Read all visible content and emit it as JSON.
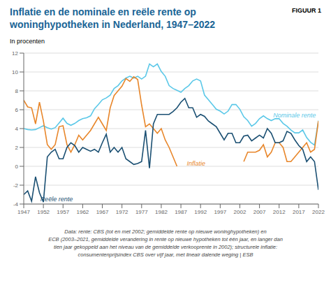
{
  "chart_data": {
    "type": "line",
    "title": "Inflatie en de nominale en reële rente op\nwoninghypotheken in Nederland, 1947–2022",
    "title_color": "#1a6596",
    "figure_label": "FIGUUR 1",
    "ylabel": "In procenten",
    "footnote": "Data: rente: CBS (tot en met 2002; gemiddelde rente op nieuwe woninghypotheken) en\nECB (2003–2021, gemiddelde verandering in rente op nieuwe hypotheken tot één jaar, en langer dan\ntien jaar gekoppeld aan het niveau van de gemiddelde verkooprente in 2002); structurele inflatie:\nconsumentenprijsindex CBS over vijf jaar, met lineair dalende weging | ESB",
    "grid": "y",
    "xlim": [
      1947,
      2022
    ],
    "xticks": [
      1947,
      1952,
      1957,
      1962,
      1967,
      1972,
      1977,
      1982,
      1987,
      1992,
      1997,
      2002,
      2007,
      2012,
      2017,
      2022
    ],
    "ylim": [
      -4,
      12
    ],
    "yticks": [
      -4,
      -2,
      0,
      2,
      4,
      6,
      8,
      10,
      12
    ],
    "x": [
      1947,
      1948,
      1949,
      1950,
      1951,
      1952,
      1953,
      1954,
      1955,
      1956,
      1957,
      1958,
      1959,
      1960,
      1961,
      1962,
      1963,
      1964,
      1965,
      1966,
      1967,
      1968,
      1969,
      1970,
      1971,
      1972,
      1973,
      1974,
      1975,
      1976,
      1977,
      1978,
      1979,
      1980,
      1981,
      1982,
      1983,
      1984,
      1985,
      1986,
      1987,
      1988,
      1989,
      1990,
      1991,
      1992,
      1993,
      1994,
      1995,
      1996,
      1997,
      1998,
      1999,
      2000,
      2001,
      2002,
      2003,
      2004,
      2005,
      2006,
      2007,
      2008,
      2009,
      2010,
      2011,
      2012,
      2013,
      2014,
      2015,
      2016,
      2017,
      2018,
      2019,
      2020,
      2021,
      2022
    ],
    "series": [
      {
        "name": "Nominale rente",
        "color": "#5bc8e8",
        "values": [
          4.0,
          3.9,
          3.85,
          3.9,
          4.1,
          4.3,
          4.1,
          3.95,
          4.1,
          4.6,
          5.1,
          4.55,
          4.35,
          4.55,
          4.85,
          5.05,
          5.15,
          5.35,
          6.1,
          6.55,
          7.05,
          7.25,
          7.55,
          8.25,
          8.55,
          9.05,
          9.35,
          9.55,
          9.35,
          9.55,
          9.25,
          9.55,
          10.85,
          10.55,
          10.85,
          10.05,
          9.55,
          8.55,
          8.25,
          8.05,
          7.85,
          8.25,
          8.55,
          9.05,
          9.25,
          9.05,
          7.55,
          7.05,
          6.55,
          6.05,
          5.85,
          5.55,
          5.85,
          6.55,
          6.55,
          6.05,
          5.25,
          4.85,
          4.25,
          4.55,
          5.05,
          5.35,
          5.05,
          4.85,
          5.05,
          5.05,
          4.55,
          4.25,
          3.85,
          3.55,
          3.55,
          3.85,
          3.05,
          2.55,
          2.25,
          4.85
        ]
      },
      {
        "name": "Inflatie",
        "color": "#e8862a",
        "values": [
          7.0,
          6.3,
          6.2,
          4.5,
          6.8,
          4.8,
          2.3,
          1.8,
          2.3,
          4.2,
          4.3,
          2.3,
          1.5,
          2.3,
          3.3,
          2.8,
          3.3,
          3.8,
          4.5,
          5.2,
          4.5,
          3.8,
          6.2,
          7.5,
          8.0,
          8.5,
          9.3,
          9.0,
          9.5,
          9.2,
          6.5,
          4.2,
          4.5,
          4.0,
          3.5,
          4.0,
          2.8,
          2.0,
          1.0,
          0.0,
          null,
          null,
          null,
          null,
          null,
          null,
          null,
          null,
          null,
          null,
          null,
          null,
          null,
          null,
          null,
          null,
          0.5,
          1.5,
          1.5,
          1.5,
          1.7,
          2.3,
          1.0,
          1.5,
          2.5,
          2.5,
          2.0,
          0.5,
          0.5,
          1.0,
          1.5,
          2.0,
          2.5,
          1.5,
          1.8,
          4.8
        ]
      },
      {
        "name": "Reële rente",
        "color": "#1a4f72",
        "values": [
          -3.0,
          -2.6,
          -3.7,
          -1.1,
          -2.8,
          -3.8,
          1.0,
          1.5,
          1.8,
          0.8,
          0.8,
          2.0,
          2.5,
          2.2,
          1.5,
          2.0,
          1.8,
          1.6,
          1.8,
          1.5,
          2.5,
          3.4,
          1.5,
          2.0,
          1.5,
          2.0,
          0.8,
          0.5,
          0.2,
          0.3,
          0.5,
          3.8,
          -0.2,
          4.5,
          5.5,
          5.5,
          5.5,
          5.5,
          5.8,
          6.2,
          6.8,
          7.2,
          6.2,
          6.2,
          5.2,
          5.5,
          5.3,
          4.8,
          4.5,
          4.2,
          3.5,
          2.8,
          3.5,
          3.5,
          2.5,
          2.5,
          3.2,
          3.3,
          2.7,
          3.0,
          3.3,
          3.0,
          4.0,
          3.5,
          2.5,
          2.5,
          2.7,
          3.7,
          3.5,
          2.8,
          2.2,
          1.8,
          0.5,
          1.0,
          0.5,
          -2.5
        ]
      }
    ],
    "annotations": [
      {
        "text": "Nominale rente",
        "x": 2010.5,
        "y": 5.4,
        "color": "#5bc8e8"
      },
      {
        "text": "Inflatie",
        "x": 1988.5,
        "y": 0.3,
        "color": "#e8862a"
      },
      {
        "text": "Reële rente",
        "x": 1951.2,
        "y": -3.5,
        "color": "#1a4f72"
      }
    ]
  }
}
